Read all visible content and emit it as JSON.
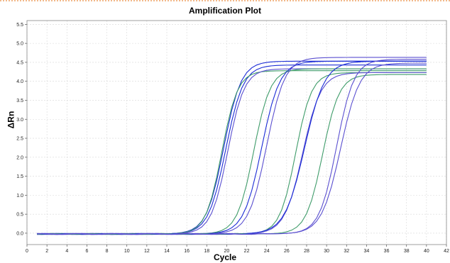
{
  "chart_data": {
    "type": "line",
    "title": "Amplification Plot",
    "xlabel": "Cycle",
    "ylabel": "ΔRn",
    "xlim": [
      0,
      42
    ],
    "ylim": [
      -0.3,
      5.6
    ],
    "xticks": [
      0,
      2,
      4,
      6,
      8,
      10,
      12,
      14,
      16,
      18,
      20,
      22,
      24,
      26,
      28,
      30,
      32,
      34,
      36,
      38,
      40,
      42
    ],
    "yticks": [
      0.0,
      0.5,
      1.0,
      1.5,
      2.0,
      2.5,
      3.0,
      3.5,
      4.0,
      4.5,
      5.0,
      5.5
    ],
    "ytick_labels": [
      "0.0",
      "0.5",
      "1.0",
      "1.5",
      "2.0",
      "2.5",
      "3.0",
      "3.5",
      "4.0",
      "4.5",
      "5.0",
      "5.5"
    ],
    "grid": true,
    "x_range": [
      1,
      40
    ],
    "series": [
      {
        "color": "#1a2bd6",
        "midpoint": 19.7,
        "slope": 1.15,
        "plateau": 4.55
      },
      {
        "color": "#1a2bd6",
        "midpoint": 19.9,
        "slope": 1.15,
        "plateau": 4.45
      },
      {
        "color": "#3f9c6a",
        "midpoint": 19.5,
        "slope": 1.25,
        "plateau": 4.3
      },
      {
        "color": "#5a4fd0",
        "midpoint": 20.1,
        "slope": 1.2,
        "plateau": 4.35
      },
      {
        "color": "#3f9c6a",
        "midpoint": 22.7,
        "slope": 1.2,
        "plateau": 4.35
      },
      {
        "color": "#1a2bd6",
        "midpoint": 23.5,
        "slope": 1.1,
        "plateau": 4.55
      },
      {
        "color": "#5a4fd0",
        "midpoint": 24.0,
        "slope": 1.1,
        "plateau": 4.65
      },
      {
        "color": "#3f9c6a",
        "midpoint": 26.9,
        "slope": 1.25,
        "plateau": 4.25
      },
      {
        "color": "#5a4fd0",
        "midpoint": 27.6,
        "slope": 1.1,
        "plateau": 4.25
      },
      {
        "color": "#1a2bd6",
        "midpoint": 27.8,
        "slope": 1.0,
        "plateau": 4.55
      },
      {
        "color": "#3f9c6a",
        "midpoint": 29.6,
        "slope": 1.2,
        "plateau": 4.2
      },
      {
        "color": "#5a4fd0",
        "midpoint": 31.0,
        "slope": 1.15,
        "plateau": 4.6
      },
      {
        "color": "#5a4fd0",
        "midpoint": 31.4,
        "slope": 1.05,
        "plateau": 4.5
      }
    ]
  },
  "colors": {
    "blue": "#1a2bd6",
    "green": "#3f9c6a",
    "violet": "#5a4fd0",
    "grid": "#d8d8d8"
  }
}
